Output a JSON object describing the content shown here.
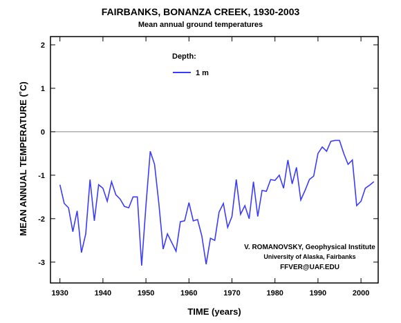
{
  "chart_data": {
    "type": "line",
    "title": "FAIRBANKS, BONANZA CREEK, 1930-2003",
    "subtitle": "Mean annual ground temperatures",
    "xlabel": "TIME (years)",
    "ylabel": "MEAN ANNUAL TEMPERATURE (˚C)",
    "legend_title": "Depth:",
    "annotations": [
      "V. ROMANOVSKY, Geophysical Institute",
      "University of Alaska, Fairbanks",
      "FFVER@UAF.EDU"
    ],
    "reference_line": 0,
    "x": [
      1930,
      1931,
      1932,
      1933,
      1934,
      1935,
      1936,
      1937,
      1938,
      1939,
      1940,
      1941,
      1942,
      1943,
      1944,
      1945,
      1946,
      1947,
      1948,
      1949,
      1950,
      1951,
      1952,
      1953,
      1954,
      1955,
      1956,
      1957,
      1958,
      1959,
      1960,
      1961,
      1962,
      1963,
      1964,
      1965,
      1966,
      1967,
      1968,
      1969,
      1970,
      1971,
      1972,
      1973,
      1974,
      1975,
      1976,
      1977,
      1978,
      1979,
      1980,
      1981,
      1982,
      1983,
      1984,
      1985,
      1986,
      1987,
      1988,
      1989,
      1990,
      1991,
      1992,
      1993,
      1994,
      1995,
      1996,
      1997,
      1998,
      1999,
      2000,
      2001,
      2002,
      2003
    ],
    "series": [
      {
        "name": "1 m",
        "color": "#3b3bff",
        "values": [
          -1.22,
          -1.65,
          -1.75,
          -2.3,
          -1.82,
          -2.78,
          -2.35,
          -1.1,
          -2.05,
          -1.22,
          -1.3,
          -1.6,
          -1.15,
          -1.45,
          -1.55,
          -1.72,
          -1.75,
          -1.5,
          -1.5,
          -3.08,
          -1.7,
          -0.45,
          -0.75,
          -1.65,
          -2.7,
          -2.35,
          -2.55,
          -2.75,
          -2.07,
          -2.05,
          -1.63,
          -2.05,
          -2.02,
          -2.4,
          -3.05,
          -2.45,
          -2.5,
          -1.85,
          -1.65,
          -2.2,
          -1.95,
          -1.1,
          -1.9,
          -1.7,
          -2.0,
          -1.15,
          -1.95,
          -1.35,
          -1.37,
          -1.1,
          -1.12,
          -1.0,
          -1.3,
          -0.65,
          -1.2,
          -0.82,
          -1.57,
          -1.35,
          -1.1,
          -1.02,
          -0.5,
          -0.35,
          -0.45,
          -0.22,
          -0.2,
          -0.2,
          -0.5,
          -0.75,
          -0.65,
          -1.7,
          -1.6,
          -1.3,
          -1.23,
          -1.15
        ]
      }
    ],
    "xlim": [
      1927.8,
      2004
    ],
    "xticks": [
      1930,
      1940,
      1950,
      1960,
      1970,
      1980,
      1990,
      2000
    ],
    "ylim": [
      -3.48,
      2.19
    ],
    "yticks": [
      -3,
      -2,
      -1,
      0,
      1,
      2
    ]
  }
}
